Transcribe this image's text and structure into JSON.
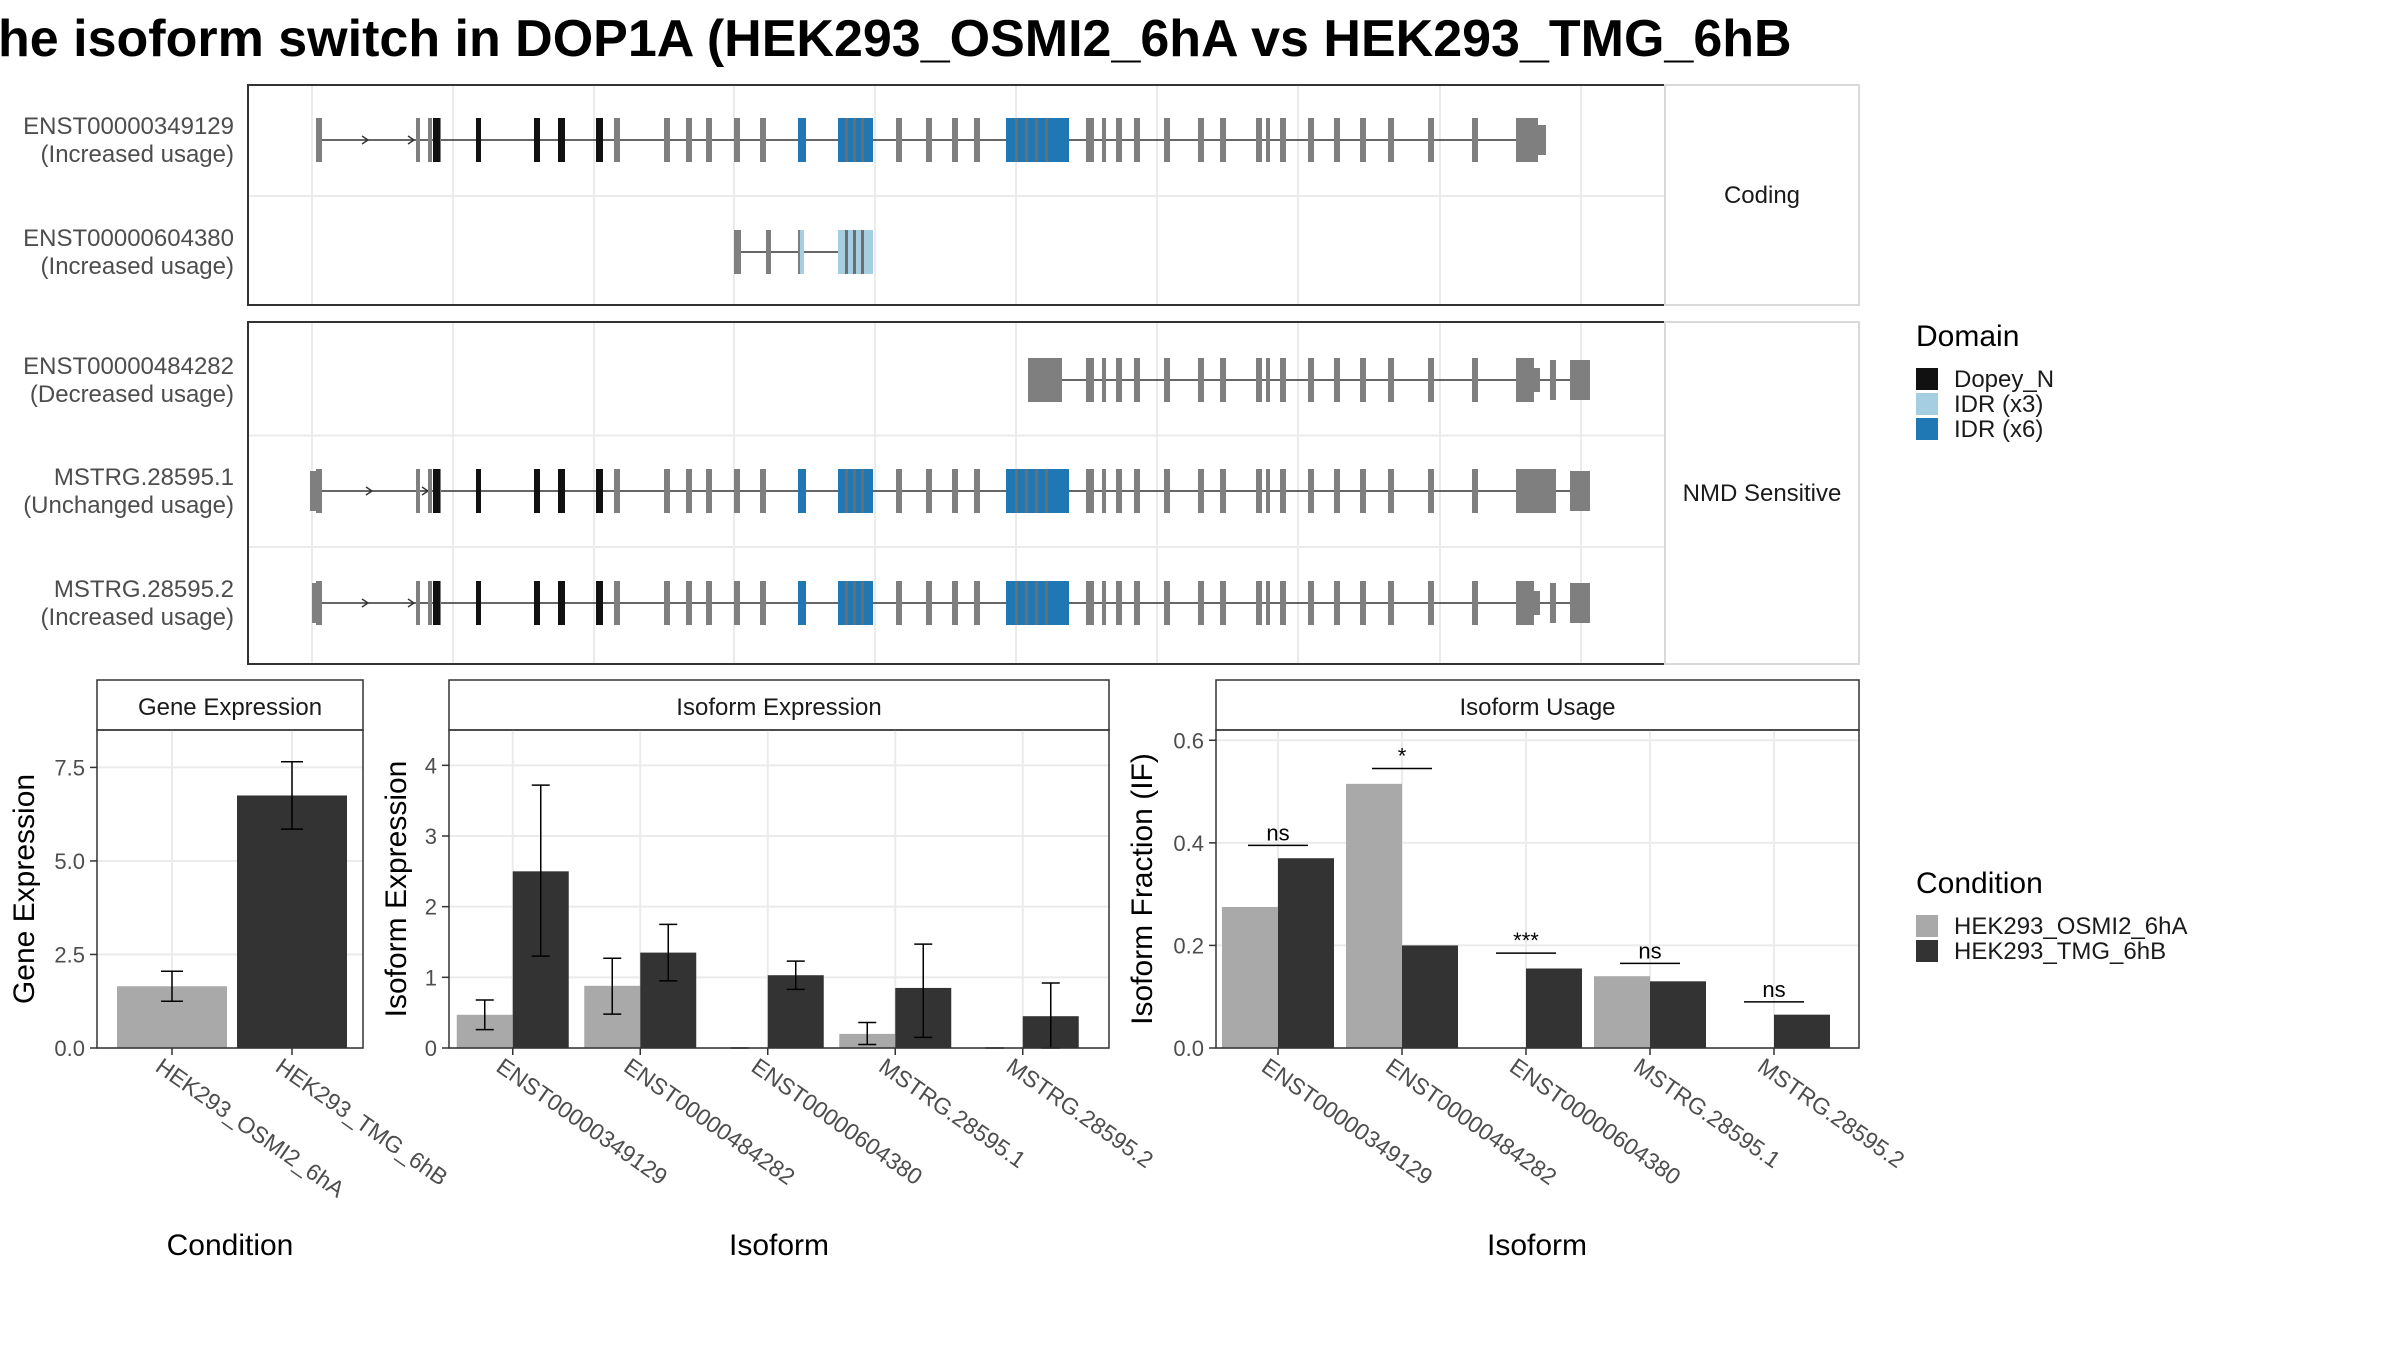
{
  "title": "he isoform switch in DOP1A (HEK293_OSMI2_6hA vs HEK293_TMG_6hB",
  "colors": {
    "dopey": "#111111",
    "idr3": "#a6cee3",
    "idr6": "#1f78b4",
    "exon": "#7f7f7f",
    "cond_a": "#a9a9a9",
    "cond_b": "#333333",
    "grid": "#ebebeb",
    "panel_border": "#333333"
  },
  "structure": {
    "groups": [
      {
        "label": "Coding",
        "isoforms": [
          {
            "id": "ENST00000349129",
            "usage": "(Increased usage)"
          },
          {
            "id": "ENST00000604380",
            "usage": "(Increased usage)"
          }
        ]
      },
      {
        "label": "NMD Sensitive",
        "isoforms": [
          {
            "id": "ENST00000484282",
            "usage": "(Decreased usage)"
          },
          {
            "id": "MSTRG.28595.1",
            "usage": "(Unchanged usage)"
          },
          {
            "id": "MSTRG.28595.2",
            "usage": "(Increased usage)"
          }
        ]
      }
    ]
  },
  "legend_domain": {
    "title": "Domain",
    "items": [
      {
        "label": "Dopey_N",
        "color": "#111111"
      },
      {
        "label": "IDR (x3)",
        "color": "#a6cee3"
      },
      {
        "label": "IDR (x6)",
        "color": "#1f78b4"
      }
    ]
  },
  "legend_condition": {
    "title": "Condition",
    "items": [
      {
        "label": "HEK293_OSMI2_6hA",
        "color": "#a9a9a9"
      },
      {
        "label": "HEK293_TMG_6hB",
        "color": "#333333"
      }
    ]
  },
  "chart_data": [
    {
      "type": "bar",
      "title": "Gene Expression",
      "xlabel": "Condition",
      "ylabel": "Gene Expression",
      "categories": [
        "HEK293_OSMI2_6hA",
        "HEK293_TMG_6hB"
      ],
      "values": [
        1.65,
        6.75
      ],
      "errors": [
        [
          1.25,
          2.05
        ],
        [
          5.85,
          7.65
        ]
      ],
      "ylim": [
        0,
        8.5
      ],
      "yticks": [
        "0.0",
        "2.5",
        "5.0",
        "7.5"
      ],
      "ytick_values": [
        0,
        2.5,
        5,
        7.5
      ]
    },
    {
      "type": "bar",
      "title": "Isoform Expression",
      "xlabel": "Isoform",
      "ylabel": "Isoform Expression",
      "categories": [
        "ENST00000349129",
        "ENST00000484282",
        "ENST00000604380",
        "MSTRG.28595.1",
        "MSTRG.28595.2"
      ],
      "series": [
        {
          "name": "HEK293_OSMI2_6hA",
          "values": [
            0.47,
            0.88,
            0.0,
            0.2,
            0.0
          ],
          "errors": [
            [
              0.26,
              0.68
            ],
            [
              0.48,
              1.27
            ],
            [
              0,
              0
            ],
            [
              0.05,
              0.36
            ],
            [
              0,
              0
            ]
          ]
        },
        {
          "name": "HEK293_TMG_6hB",
          "values": [
            2.5,
            1.35,
            1.03,
            0.85,
            0.45
          ],
          "errors": [
            [
              1.3,
              3.72
            ],
            [
              0.95,
              1.75
            ],
            [
              0.83,
              1.23
            ],
            [
              0.15,
              1.47
            ],
            [
              0.0,
              0.92
            ]
          ]
        }
      ],
      "ylim": [
        0,
        4.5
      ],
      "yticks": [
        "0",
        "1",
        "2",
        "3",
        "4"
      ],
      "ytick_values": [
        0,
        1,
        2,
        3,
        4
      ]
    },
    {
      "type": "bar",
      "title": "Isoform Usage",
      "xlabel": "Isoform",
      "ylabel": "Isoform Fraction (IF)",
      "categories": [
        "ENST00000349129",
        "ENST00000484282",
        "ENST00000604380",
        "MSTRG.28595.1",
        "MSTRG.28595.2"
      ],
      "series": [
        {
          "name": "HEK293_OSMI2_6hA",
          "values": [
            0.275,
            0.515,
            0.0,
            0.14,
            0.0
          ]
        },
        {
          "name": "HEK293_TMG_6hB",
          "values": [
            0.37,
            0.2,
            0.155,
            0.13,
            0.065
          ]
        }
      ],
      "significance": [
        "ns",
        "*",
        "***",
        "ns",
        "ns"
      ],
      "sig_bracket_y": [
        0.395,
        0.545,
        0.185,
        0.165,
        0.09
      ],
      "ylim": [
        0,
        0.62
      ],
      "yticks": [
        "0.0",
        "0.2",
        "0.4",
        "0.6"
      ],
      "ytick_values": [
        0,
        0.2,
        0.4,
        0.6
      ]
    }
  ]
}
